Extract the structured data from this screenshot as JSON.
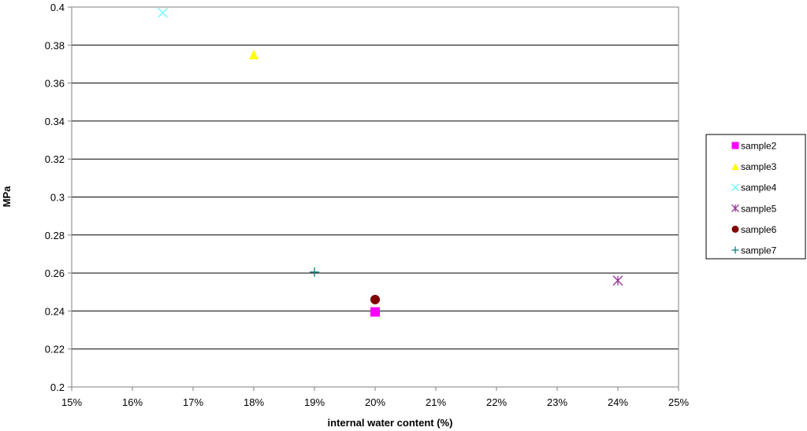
{
  "chart_data": {
    "type": "scatter",
    "xlabel": "internal water content  (%)",
    "ylabel": "MPa",
    "xlim": [
      15,
      25
    ],
    "ylim": [
      0.2,
      0.4
    ],
    "x_ticks": [
      "15%",
      "16%",
      "17%",
      "18%",
      "19%",
      "20%",
      "21%",
      "22%",
      "23%",
      "24%",
      "25%"
    ],
    "y_ticks": [
      "0.2",
      "0.22",
      "0.24",
      "0.26",
      "0.28",
      "0.3",
      "0.32",
      "0.34",
      "0.36",
      "0.38",
      "0.4"
    ],
    "grid": "horizontal",
    "legend_position": "right",
    "series": [
      {
        "name": "sample2",
        "marker": "square",
        "color": "#ff00ff",
        "x": 20,
        "y": 0.2395
      },
      {
        "name": "sample3",
        "marker": "triangle",
        "color": "#ffff00",
        "x": 18,
        "y": 0.375
      },
      {
        "name": "sample4",
        "marker": "x",
        "color": "#66ffff",
        "x": 16.5,
        "y": 0.397
      },
      {
        "name": "sample5",
        "marker": "star",
        "color": "#993399",
        "x": 24,
        "y": 0.256
      },
      {
        "name": "sample6",
        "marker": "circle",
        "color": "#800000",
        "x": 20,
        "y": 0.246
      },
      {
        "name": "sample7",
        "marker": "plus",
        "color": "#008080",
        "x": 19,
        "y": 0.2605
      }
    ]
  }
}
